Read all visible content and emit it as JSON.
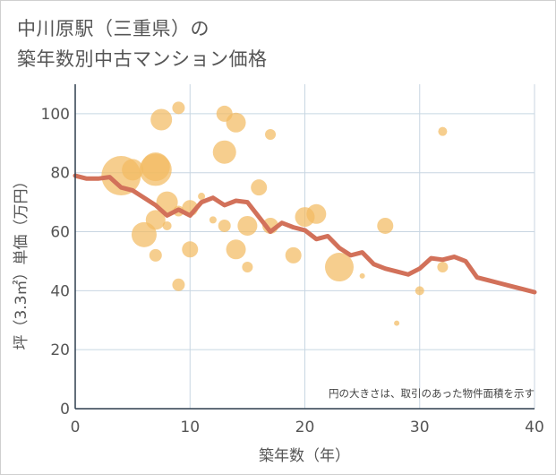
{
  "title_line1": "中川原駅（三重県）の",
  "title_line2": "築年数別中古マンション価格",
  "chart_data": {
    "type": "scatter",
    "xlabel": "築年数（年）",
    "ylabel": "坪（3.3㎡）単価（万円）",
    "xlim": [
      0,
      40
    ],
    "ylim": [
      0,
      110
    ],
    "xticks": [
      0,
      10,
      20,
      30,
      40
    ],
    "yticks": [
      0,
      20,
      40,
      60,
      80,
      100
    ],
    "grid": true,
    "note": "円の大きさは、取引のあった物件面積を示す",
    "colors": {
      "bubble": "#f2bb62",
      "line": "#d2715a"
    },
    "bubbles": [
      {
        "x": 4,
        "y": 79,
        "size": 22
      },
      {
        "x": 5,
        "y": 81,
        "size": 12
      },
      {
        "x": 7,
        "y": 82,
        "size": 16
      },
      {
        "x": 7,
        "y": 81,
        "size": 18
      },
      {
        "x": 7.5,
        "y": 98,
        "size": 12
      },
      {
        "x": 9,
        "y": 102,
        "size": 7
      },
      {
        "x": 6,
        "y": 59,
        "size": 14
      },
      {
        "x": 7,
        "y": 64,
        "size": 11
      },
      {
        "x": 8,
        "y": 70,
        "size": 12
      },
      {
        "x": 8,
        "y": 62,
        "size": 5
      },
      {
        "x": 7,
        "y": 52,
        "size": 7
      },
      {
        "x": 9,
        "y": 67,
        "size": 6
      },
      {
        "x": 10,
        "y": 68,
        "size": 9
      },
      {
        "x": 10,
        "y": 54,
        "size": 9
      },
      {
        "x": 9,
        "y": 42,
        "size": 7
      },
      {
        "x": 11,
        "y": 72,
        "size": 4
      },
      {
        "x": 12,
        "y": 64,
        "size": 4
      },
      {
        "x": 13,
        "y": 100,
        "size": 9
      },
      {
        "x": 14,
        "y": 97,
        "size": 11
      },
      {
        "x": 13,
        "y": 87,
        "size": 13
      },
      {
        "x": 13,
        "y": 62,
        "size": 7
      },
      {
        "x": 14,
        "y": 54,
        "size": 11
      },
      {
        "x": 15,
        "y": 62,
        "size": 11
      },
      {
        "x": 15,
        "y": 48,
        "size": 6
      },
      {
        "x": 16,
        "y": 75,
        "size": 9
      },
      {
        "x": 17,
        "y": 93,
        "size": 6
      },
      {
        "x": 17,
        "y": 62,
        "size": 9
      },
      {
        "x": 19,
        "y": 52,
        "size": 9
      },
      {
        "x": 20,
        "y": 65,
        "size": 11
      },
      {
        "x": 21,
        "y": 66,
        "size": 11
      },
      {
        "x": 23,
        "y": 48,
        "size": 16
      },
      {
        "x": 25,
        "y": 45,
        "size": 3
      },
      {
        "x": 27,
        "y": 62,
        "size": 9
      },
      {
        "x": 28,
        "y": 29,
        "size": 3
      },
      {
        "x": 30,
        "y": 40,
        "size": 5
      },
      {
        "x": 32,
        "y": 48,
        "size": 6
      },
      {
        "x": 32,
        "y": 94,
        "size": 5
      }
    ],
    "trend": {
      "x": [
        0,
        1,
        2,
        3,
        4,
        5,
        6,
        7,
        8,
        9,
        10,
        11,
        12,
        13,
        14,
        15,
        16,
        17,
        18,
        19,
        20,
        21,
        22,
        23,
        24,
        25,
        26,
        27,
        28,
        29,
        30,
        31,
        32,
        33,
        34,
        35,
        36,
        37,
        38,
        39,
        40
      ],
      "y": [
        79,
        78,
        78,
        78.5,
        75,
        74,
        71.5,
        69,
        65.5,
        67.5,
        65.5,
        70,
        71.5,
        69,
        70.5,
        70,
        65,
        60,
        63,
        61.5,
        60.5,
        57.5,
        58.5,
        54.5,
        52,
        53,
        49,
        47.5,
        46.5,
        45.5,
        47.5,
        51,
        50.5,
        51.5,
        50,
        44.5,
        43.5,
        42.5,
        41.5,
        40.5,
        39.5
      ]
    }
  }
}
